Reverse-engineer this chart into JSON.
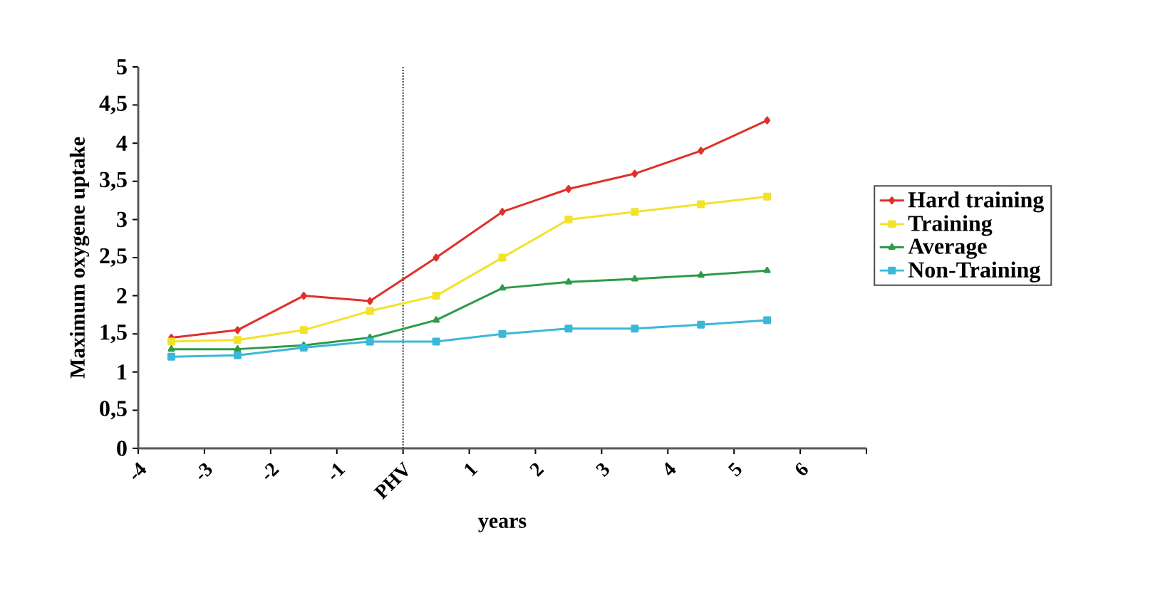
{
  "chart_data": {
    "type": "line",
    "xlabel": "years",
    "ylabel": "Maximum oxygene uptake",
    "x": [
      -3.5,
      -2.5,
      -1.5,
      -0.5,
      0.5,
      1.5,
      2.5,
      3.5,
      4.5,
      5.5
    ],
    "series": [
      {
        "name": "Hard training",
        "color": "#e0302a",
        "marker": "diamond",
        "values": [
          1.45,
          1.55,
          2.0,
          1.93,
          2.5,
          3.1,
          3.4,
          3.6,
          3.9,
          4.3
        ]
      },
      {
        "name": "Training",
        "color": "#f2e22a",
        "marker": "square",
        "values": [
          1.4,
          1.42,
          1.55,
          1.8,
          2.0,
          2.5,
          3.0,
          3.1,
          3.2,
          3.3
        ]
      },
      {
        "name": "Average",
        "color": "#2e9a4a",
        "marker": "triangle",
        "values": [
          1.3,
          1.3,
          1.35,
          1.45,
          1.68,
          2.1,
          2.18,
          2.22,
          2.27,
          2.33
        ]
      },
      {
        "name": "Non-Training",
        "color": "#3bb8d8",
        "marker": "square",
        "values": [
          1.2,
          1.22,
          1.32,
          1.4,
          1.4,
          1.5,
          1.57,
          1.57,
          1.62,
          1.68
        ]
      }
    ],
    "xlim": [
      -4,
      7
    ],
    "xticks": [
      -4,
      -3,
      -2,
      -1,
      {
        "value": 0,
        "label": "PHV"
      },
      1,
      2,
      3,
      4,
      5,
      6,
      {
        "value": 7,
        "label": null
      }
    ],
    "ylim": [
      0,
      5
    ],
    "yticks": [
      0,
      {
        "value": 0.5,
        "label": "0,5"
      },
      1,
      {
        "value": 1.5,
        "label": "1,5"
      },
      2,
      {
        "value": 2.5,
        "label": "2,5"
      },
      3,
      {
        "value": 3.5,
        "label": "3,5"
      },
      4,
      {
        "value": 4.5,
        "label": "4,5"
      },
      5
    ],
    "ref_lines": [
      {
        "axis": "x",
        "value": 0,
        "color": "#333333",
        "line_style": "dotted"
      }
    ],
    "grid": false,
    "legend": "right"
  }
}
